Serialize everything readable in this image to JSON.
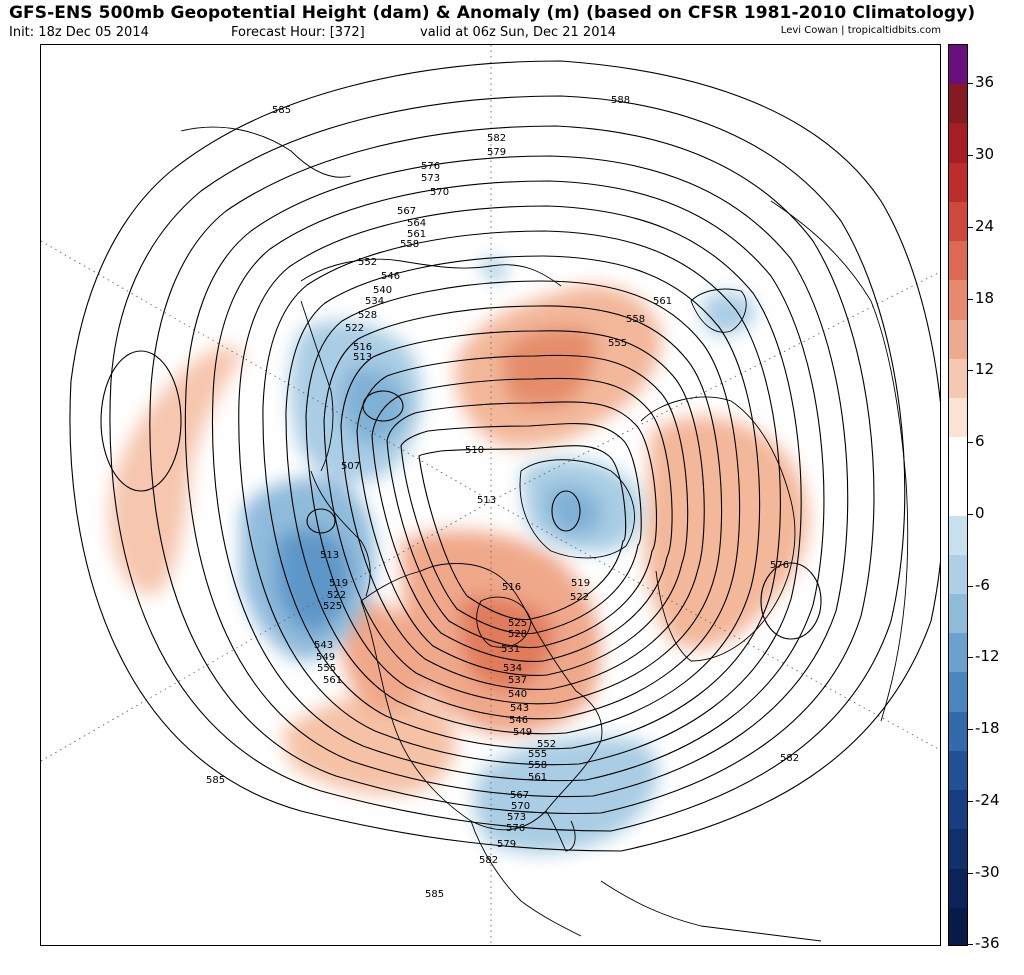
{
  "header": {
    "title": "GFS-ENS 500mb Geopotential Height (dam) & Anomaly (m) (based on CFSR 1981-2010 Climatology)",
    "init": "Init: 18z Dec 05 2014",
    "forecast_hour": "Forecast Hour: [372]",
    "valid": "valid at 06z Sun, Dec 21 2014",
    "credit": "Levi Cowan | tropicaltidbits.com"
  },
  "colorbar": {
    "labels": [
      "36",
      "30",
      "24",
      "18",
      "12",
      "6",
      "0",
      "-6",
      "-12",
      "-18",
      "-24",
      "-30",
      "-36"
    ],
    "colors": [
      "#6a0f7e",
      "#861a22",
      "#a51e26",
      "#bd2d2b",
      "#cd4a3a",
      "#db6a50",
      "#e7896c",
      "#eeaa8e",
      "#f5c8b2",
      "#fbe2d5",
      "#ffffff",
      "#ffffff",
      "#c9e0ee",
      "#aecfe5",
      "#8fbbdb",
      "#6aa2cd",
      "#4a86bd",
      "#336aaa",
      "#215296",
      "#173e81",
      "#10306b",
      "#0b2358",
      "#081a47"
    ]
  },
  "map": {
    "contour_labels": {
      "l585_a": "585",
      "l588": "588",
      "l582_a": "582",
      "l579_a": "579",
      "l576_a": "576",
      "l573_a": "573",
      "l570_a": "570",
      "l567_a": "567",
      "l564": "564",
      "l561_a": "561",
      "l558_a": "558",
      "l552_a": "552",
      "l546_a": "546",
      "l540_a": "540",
      "l534_a": "534",
      "l528_a": "528",
      "l522_a": "522",
      "l516_a": "516",
      "l513_a": "513",
      "l510": "510",
      "l507": "507",
      "l513_b": "513",
      "l513_c": "513",
      "l519_a": "519",
      "l522_b": "522",
      "l525_a": "525",
      "l543_a": "543",
      "l549_a": "549",
      "l555_a": "555",
      "l561_b": "561",
      "l561_c": "561",
      "l558_b": "558",
      "l555_b": "555",
      "l576_b": "576",
      "l582_b": "582",
      "l585_b": "585",
      "l585_c": "585",
      "l582_c": "582",
      "l516_b": "516",
      "l519_b": "519",
      "l522_c": "522",
      "l525_b": "525",
      "l528_b": "528",
      "l531": "531",
      "l534_b": "534",
      "l537": "537",
      "l540_b": "540",
      "l543_b": "543",
      "l546_b": "546",
      "l549_b": "549",
      "l552_b": "552",
      "l555_c": "555",
      "l558_c": "558",
      "l561_d": "561",
      "l567_b": "567",
      "l570_b": "570",
      "l573_b": "573",
      "l576_c": "576",
      "l579_b": "579"
    }
  }
}
